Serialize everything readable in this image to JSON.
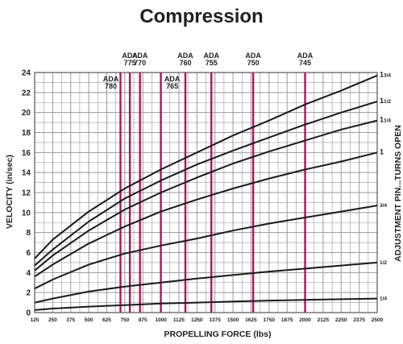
{
  "chart_data": {
    "type": "line",
    "title": "Compression",
    "xlabel": "PROPELLING FORCE (lbs)",
    "ylabel": "VELOCITY (in/sec)",
    "right_label": "ADJUSTMENT PIN...TURNS OPEN",
    "xlim": [
      125,
      2500
    ],
    "ylim": [
      0,
      24
    ],
    "x_ticks": [
      125,
      250,
      375,
      500,
      625,
      750,
      875,
      1000,
      1125,
      1250,
      1375,
      1500,
      1625,
      1750,
      1875,
      2000,
      2125,
      2250,
      2375,
      2500
    ],
    "y_ticks": [
      0,
      2,
      4,
      6,
      8,
      10,
      12,
      14,
      16,
      18,
      20,
      22,
      24
    ],
    "grid": true,
    "colors": {
      "curves": "#1a1a1a",
      "ada_lines": "#b0145a",
      "grid": "#9a9a9a"
    },
    "series": [
      {
        "name": "1/4",
        "x": [
          125,
          250,
          500,
          750,
          1000,
          1250,
          1500,
          1750,
          2000,
          2250,
          2500
        ],
        "y": [
          0.25,
          0.4,
          0.6,
          0.75,
          0.9,
          1.0,
          1.1,
          1.2,
          1.27,
          1.34,
          1.4
        ]
      },
      {
        "name": "1/2",
        "x": [
          125,
          250,
          500,
          750,
          1000,
          1250,
          1500,
          1750,
          2000,
          2250,
          2500
        ],
        "y": [
          1.0,
          1.4,
          2.1,
          2.6,
          3.0,
          3.4,
          3.75,
          4.1,
          4.4,
          4.7,
          5.0
        ]
      },
      {
        "name": "3/4",
        "x": [
          125,
          250,
          500,
          750,
          1000,
          1250,
          1500,
          1750,
          2000,
          2250,
          2500
        ],
        "y": [
          2.4,
          3.3,
          4.8,
          5.9,
          6.7,
          7.4,
          8.2,
          8.9,
          9.5,
          10.1,
          10.7
        ]
      },
      {
        "name": "1",
        "x": [
          125,
          250,
          500,
          750,
          1000,
          1250,
          1500,
          1750,
          2000,
          2250,
          2500
        ],
        "y": [
          3.6,
          4.8,
          6.9,
          8.6,
          10.1,
          11.3,
          12.4,
          13.4,
          14.3,
          15.1,
          16.0
        ]
      },
      {
        "name": "1 1/4",
        "x": [
          125,
          250,
          500,
          750,
          1000,
          1250,
          1500,
          1750,
          2000,
          2250,
          2500
        ],
        "y": [
          4.2,
          5.7,
          8.2,
          10.3,
          12.0,
          13.5,
          14.9,
          16.1,
          17.2,
          18.3,
          19.2
        ]
      },
      {
        "name": "1 1/2",
        "x": [
          125,
          250,
          500,
          750,
          1000,
          1250,
          1500,
          1750,
          2000,
          2250,
          2500
        ],
        "y": [
          4.7,
          6.3,
          9.1,
          11.4,
          13.2,
          14.8,
          16.2,
          17.5,
          18.8,
          20.0,
          21.1
        ]
      },
      {
        "name": "1 3/4",
        "x": [
          125,
          250,
          500,
          750,
          1000,
          1250,
          1500,
          1750,
          2000,
          2250,
          2500
        ],
        "y": [
          5.4,
          7.3,
          10.1,
          12.4,
          14.3,
          16.0,
          17.7,
          19.2,
          20.8,
          22.2,
          23.7
        ]
      }
    ],
    "ada_lines": [
      {
        "label": "ADA",
        "model": "780",
        "x": 720
      },
      {
        "label": "ADA",
        "model": "775",
        "x": 785
      },
      {
        "label": "ADA",
        "model": "770",
        "x": 855
      },
      {
        "label": "ADA",
        "model": "765",
        "x": 1000
      },
      {
        "label": "ADA",
        "model": "760",
        "x": 1170
      },
      {
        "label": "ADA",
        "model": "755",
        "x": 1350
      },
      {
        "label": "ADA",
        "model": "750",
        "x": 1640
      },
      {
        "label": "ADA",
        "model": "745",
        "x": 2000
      }
    ]
  }
}
